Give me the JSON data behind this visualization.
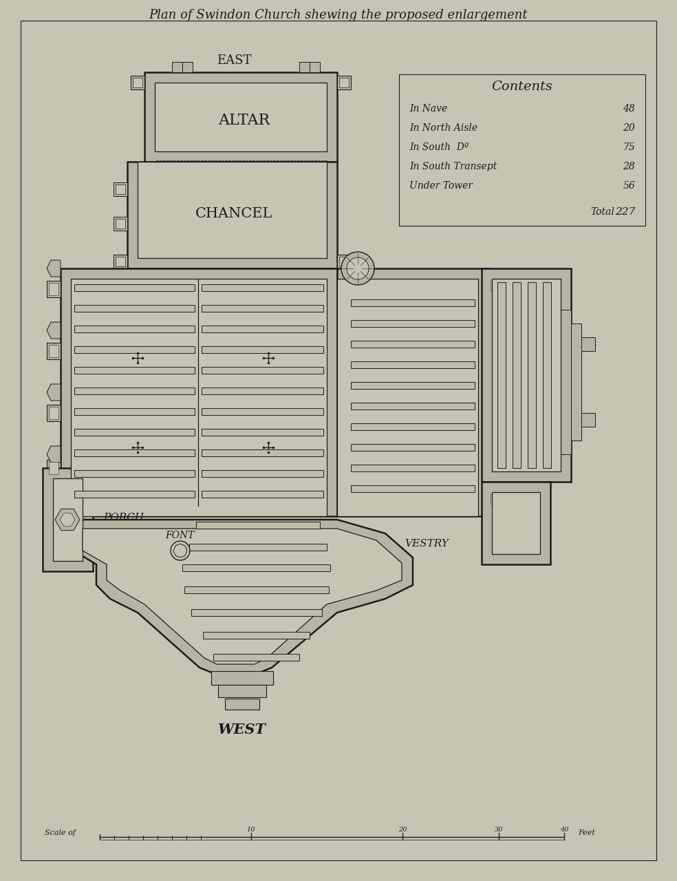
{
  "title": "Plan of Swindon Church shewing the proposed enlargement",
  "bg_color": "#c8c4b4",
  "ink_color": "#1c1c1c",
  "contents_title": "Contents",
  "contents_items": [
    [
      "In Nave",
      "48"
    ],
    [
      "In North Aisle",
      "20"
    ],
    [
      "In South  Dº",
      "75"
    ],
    [
      "In South Transept",
      "28"
    ],
    [
      "Under Tower",
      "56"
    ]
  ],
  "contents_total": "227",
  "wall_fill": "#b8b4a4",
  "floor_fill": "#c8c4b4",
  "pew_fill": "#c0bcac"
}
